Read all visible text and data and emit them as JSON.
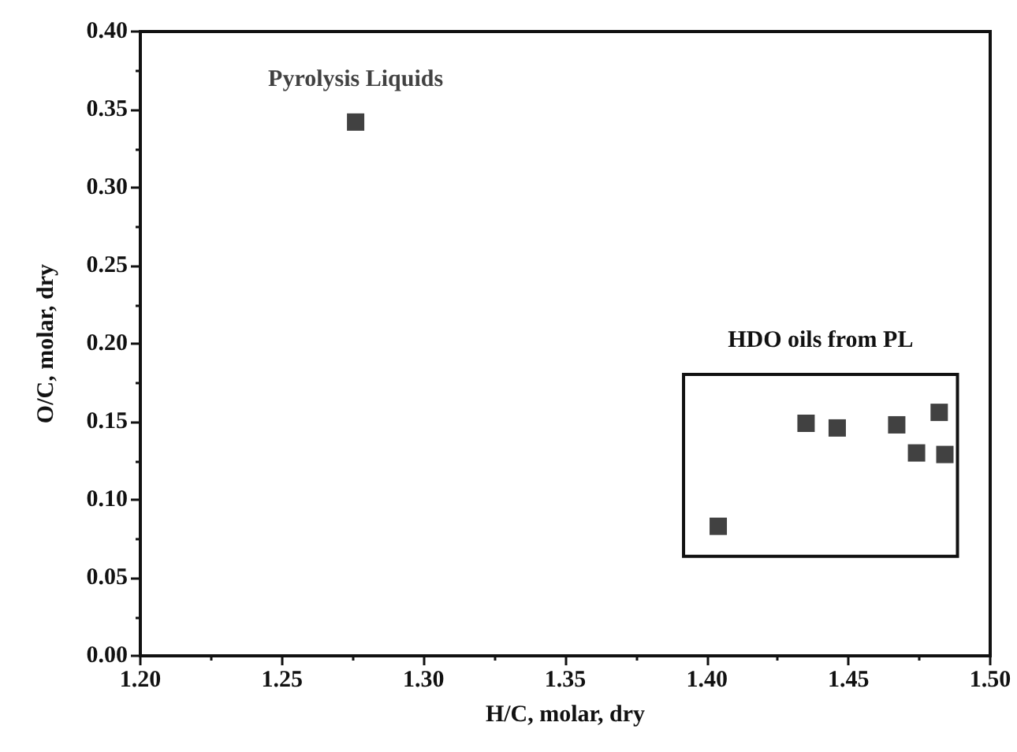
{
  "chart_data": {
    "type": "scatter",
    "xlabel": "H/C, molar, dry",
    "ylabel": "O/C, molar, dry",
    "xlim": [
      1.2,
      1.5
    ],
    "ylim": [
      0,
      0.4
    ],
    "xticks": [
      {
        "value": 1.2,
        "label": "1.20"
      },
      {
        "value": 1.25,
        "label": "1.25"
      },
      {
        "value": 1.3,
        "label": "1.30"
      },
      {
        "value": 1.35,
        "label": "1.35"
      },
      {
        "value": 1.4,
        "label": "1.40"
      },
      {
        "value": 1.45,
        "label": "1.45"
      },
      {
        "value": 1.5,
        "label": "1.50"
      }
    ],
    "yticks": [
      {
        "value": 0,
        "label": "0.00"
      },
      {
        "value": 0.05,
        "label": "0.05"
      },
      {
        "value": 0.1,
        "label": "0.10"
      },
      {
        "value": 0.15,
        "label": "0.15"
      },
      {
        "value": 0.2,
        "label": "0.20"
      },
      {
        "value": 0.25,
        "label": "0.25"
      },
      {
        "value": 0.3,
        "label": "0.30"
      },
      {
        "value": 0.35,
        "label": "0.35"
      },
      {
        "value": 0.4,
        "label": "0.40"
      }
    ],
    "marker": "square",
    "grid": false,
    "legend": false,
    "series": [
      {
        "name": "Pyrolysis Liquids",
        "color": "#111111",
        "x": [
          1.276
        ],
        "values": [
          0.342
        ]
      },
      {
        "name": "HDO oils from PL",
        "color": "#111111",
        "x": [
          1.404,
          1.435,
          1.446,
          1.467,
          1.482,
          1.474,
          1.484
        ],
        "values": [
          0.083,
          0.149,
          0.146,
          0.148,
          0.156,
          0.13,
          0.129
        ]
      }
    ]
  }
}
